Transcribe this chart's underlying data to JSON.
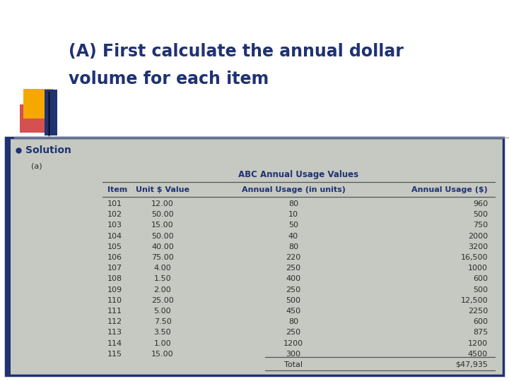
{
  "title_line1": "(A) First calculate the annual dollar",
  "title_line2": "volume for each item",
  "title_color": "#1F3272",
  "bg_color": "#C5C9C2",
  "slide_bg": "#FFFFFF",
  "bullet_label": "Solution",
  "sub_label": "(a)",
  "table_title": "ABC Annual Usage Values",
  "headers": [
    "Item",
    "Unit $ Value",
    "Annual Usage (in units)",
    "Annual Usage ($)"
  ],
  "rows": [
    [
      "101",
      "12.00",
      "80",
      "960"
    ],
    [
      "102",
      "50.00",
      "10",
      "500"
    ],
    [
      "103",
      "15.00",
      "50",
      "750"
    ],
    [
      "104",
      "50.00",
      "40",
      "2000"
    ],
    [
      "105",
      "40.00",
      "80",
      "3200"
    ],
    [
      "106",
      "75.00",
      "220",
      "16,500"
    ],
    [
      "107",
      "4.00",
      "250",
      "1000"
    ],
    [
      "108",
      "1.50",
      "400",
      "600"
    ],
    [
      "109",
      "2.00",
      "250",
      "500"
    ],
    [
      "110",
      "25.00",
      "500",
      "12,500"
    ],
    [
      "111",
      "5.00",
      "450",
      "2250"
    ],
    [
      "112",
      "7.50",
      "80",
      "600"
    ],
    [
      "113",
      "3.50",
      "250",
      "875"
    ],
    [
      "114",
      "1.00",
      "1200",
      "1200"
    ],
    [
      "115",
      "15.00",
      "300",
      "4500"
    ]
  ],
  "total_label": "Total",
  "total_value": "$47,935",
  "header_color": "#1F3272",
  "text_color": "#2C2C2C",
  "accent_yellow": "#F5A800",
  "accent_red": "#CC3333",
  "accent_blue": "#1F3272",
  "border_color": "#1F3272",
  "line_color": "#555555"
}
